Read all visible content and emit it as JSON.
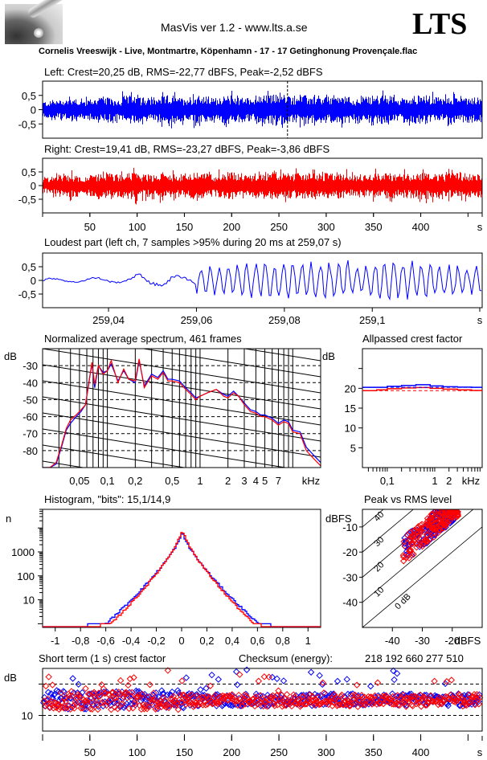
{
  "header": {
    "app_title": "MasVis ver 1.2 - www.lts.a.se",
    "brand": "LTS",
    "track": "Cornelis Vreeswijk - Live, Montmartre, Köpenhamn - 17 - 17 Getinghonung Provençale.flac",
    "logo_icon": "microphone-rod-icon"
  },
  "colors": {
    "left": "#0000ff",
    "right": "#ff0000",
    "axis": "#000000"
  },
  "chart_data": [
    {
      "id": "left-waveform",
      "type": "area",
      "title": "Left: Crest=20,25 dB, RMS=-22,77 dBFS, Peak=-2,52 dBFS",
      "ytick_labels": [
        "0,5",
        "0",
        "-0,5"
      ],
      "yticks": [
        0.5,
        0,
        -0.5
      ],
      "ylim": [
        -1,
        1
      ],
      "xlim": [
        0,
        465
      ],
      "marker_x": 259.07,
      "series": [
        {
          "name": "left",
          "color": "#0000ff",
          "envelope": [
            0.35,
            0.4,
            0.45,
            0.5,
            0.4,
            0.45,
            0.55,
            0.5,
            0.45,
            0.6,
            0.55,
            0.5,
            0.45,
            0.55,
            0.6,
            0.5,
            0.55,
            0.6,
            0.55,
            0.5,
            0.55,
            0.6,
            0.55,
            0.5,
            0.55,
            0.6,
            0.65,
            0.6,
            0.55,
            0.6,
            0.55,
            0.5,
            0.55,
            0.6,
            0.55,
            0.45,
            0.5,
            0.55,
            0.6,
            0.55,
            0.5,
            0.55,
            0.6,
            0.6,
            0.55,
            0.5,
            0.55,
            0.6,
            0.55,
            0.55
          ]
        }
      ]
    },
    {
      "id": "right-waveform",
      "type": "area",
      "title": "Right: Crest=19,41 dB, RMS=-23,27 dBFS, Peak=-3,86 dBFS",
      "ytick_labels": [
        "0,5",
        "0",
        "-0,5"
      ],
      "yticks": [
        0.5,
        0,
        -0.5
      ],
      "ylim": [
        -1,
        1
      ],
      "xlim": [
        0,
        465
      ],
      "xticks": [
        50,
        100,
        150,
        200,
        250,
        300,
        350,
        400
      ],
      "xtick_labels": [
        "50",
        "100",
        "150",
        "200",
        "250",
        "300",
        "350",
        "400",
        "s"
      ],
      "series": [
        {
          "name": "right",
          "color": "#ff0000",
          "envelope": [
            0.35,
            0.4,
            0.45,
            0.5,
            0.4,
            0.45,
            0.5,
            0.55,
            0.5,
            0.55,
            0.6,
            0.5,
            0.45,
            0.55,
            0.5,
            0.5,
            0.55,
            0.55,
            0.55,
            0.5,
            0.55,
            0.6,
            0.55,
            0.5,
            0.55,
            0.6,
            0.6,
            0.55,
            0.55,
            0.6,
            0.55,
            0.5,
            0.55,
            0.6,
            0.55,
            0.45,
            0.5,
            0.55,
            0.55,
            0.55,
            0.5,
            0.55,
            0.55,
            0.6,
            0.55,
            0.5,
            0.55,
            0.55,
            0.55,
            0.5
          ]
        }
      ]
    },
    {
      "id": "loudest-part",
      "type": "line",
      "title": "Loudest part (left  ch, 7 samples >95% during 20 ms at 259,07 s)",
      "ytick_labels": [
        "0,5",
        "0",
        "-0,5"
      ],
      "yticks": [
        0.5,
        0,
        -0.5
      ],
      "ylim": [
        -1,
        1
      ],
      "xlim": [
        259.025,
        259.125
      ],
      "xticks": [
        259.04,
        259.06,
        259.08,
        259.1
      ],
      "xtick_labels": [
        "259,04",
        "259,06",
        "259,08",
        "259,1",
        "s"
      ],
      "series": [
        {
          "name": "left",
          "color": "#0000ff",
          "amplitude_profile": [
            0.12,
            0.1,
            0.15,
            0.12,
            0.3,
            0.3,
            0.25,
            0.45,
            0.5,
            0.6,
            0.55,
            0.6,
            0.65,
            0.6,
            0.55,
            0.6,
            0.6,
            0.55,
            0.5,
            0.45
          ]
        }
      ]
    },
    {
      "id": "spectrum",
      "type": "line",
      "title": "Normalized average spectrum, 461 frames",
      "ylabel": "dB",
      "ytick_labels": [
        "-30",
        "-40",
        "-50",
        "-60",
        "-70",
        "-80"
      ],
      "yticks": [
        -30,
        -40,
        -50,
        -60,
        -70,
        -80
      ],
      "ylim": [
        -90,
        -20
      ],
      "xscale": "log",
      "xlabel": "kHz",
      "xlim": [
        0.02,
        20
      ],
      "xticks": [
        0.05,
        0.1,
        0.2,
        0.5,
        1,
        2,
        3,
        4,
        5,
        7
      ],
      "xtick_labels": [
        "0,05",
        "0,1",
        "0,2",
        "0,5",
        "1",
        "2",
        "3",
        "4",
        "5",
        "7",
        "kHz"
      ],
      "x": [
        0.02,
        0.024,
        0.028,
        0.032,
        0.036,
        0.04,
        0.046,
        0.052,
        0.058,
        0.063,
        0.068,
        0.073,
        0.08,
        0.09,
        0.1,
        0.11,
        0.13,
        0.15,
        0.17,
        0.2,
        0.22,
        0.25,
        0.3,
        0.35,
        0.4,
        0.45,
        0.5,
        0.6,
        0.7,
        0.8,
        0.9,
        1,
        1.2,
        1.5,
        1.8,
        2,
        2.3,
        2.6,
        3,
        3.5,
        4,
        4.5,
        5,
        6,
        7,
        8,
        9,
        10,
        12,
        14,
        17,
        20
      ],
      "series": [
        {
          "name": "left",
          "color": "#0000ff",
          "values": [
            -90,
            -90,
            -88,
            -78,
            -68,
            -64,
            -60,
            -57,
            -53,
            -40,
            -29,
            -43,
            -30,
            -34,
            -33,
            -29,
            -39,
            -33,
            -38,
            -40,
            -27,
            -42,
            -35,
            -37,
            -33,
            -38,
            -38,
            -39,
            -43,
            -46,
            -49,
            -48,
            -46,
            -44,
            -47,
            -48,
            -45,
            -48,
            -52,
            -56,
            -57,
            -59,
            -59,
            -61,
            -64,
            -62,
            -63,
            -68,
            -69,
            -78,
            -83,
            -87
          ]
        },
        {
          "name": "right",
          "color": "#ff0000",
          "values": [
            -90,
            -90,
            -87,
            -77,
            -67,
            -62,
            -59,
            -56,
            -53,
            -41,
            -28,
            -41,
            -30,
            -35,
            -33,
            -27,
            -40,
            -32,
            -38,
            -39,
            -26,
            -43,
            -36,
            -38,
            -34,
            -39,
            -39,
            -40,
            -44,
            -47,
            -50,
            -48,
            -46,
            -44,
            -48,
            -49,
            -46,
            -48,
            -53,
            -57,
            -58,
            -60,
            -60,
            -62,
            -65,
            -63,
            -64,
            -69,
            -70,
            -80,
            -85,
            -89
          ]
        }
      ]
    },
    {
      "id": "allpassed-crest",
      "type": "line",
      "title": "Allpassed crest factor",
      "ylabel": "dB",
      "ytick_labels": [
        "20",
        "15",
        "10",
        "5"
      ],
      "yticks": [
        20,
        15,
        10,
        5
      ],
      "ylim": [
        0,
        30
      ],
      "xscale": "log",
      "xlabel": "kHz",
      "xlim": [
        0.03,
        10
      ],
      "xtick_labels": [
        "0,1",
        "1",
        "2",
        "kHz"
      ],
      "xticks": [
        0.1,
        1,
        2
      ],
      "x": [
        0.03,
        0.06,
        0.1,
        0.2,
        0.4,
        0.8,
        1.5,
        3,
        6,
        10
      ],
      "series": [
        {
          "name": "left",
          "color": "#0000ff",
          "values": [
            20.25,
            20.25,
            20.5,
            20.7,
            20.9,
            20.6,
            20.4,
            20.3,
            20.25,
            20.25
          ]
        },
        {
          "name": "right",
          "color": "#ff0000",
          "values": [
            19.4,
            19.6,
            19.9,
            20.1,
            20.2,
            20.0,
            19.8,
            19.6,
            19.45,
            19.4
          ]
        },
        {
          "name": "left-full",
          "color": "#0000ff",
          "dashed": true,
          "value": 20.25
        },
        {
          "name": "right-full",
          "color": "#ff0000",
          "dashed": true,
          "value": 19.41
        }
      ]
    },
    {
      "id": "histogram",
      "type": "line",
      "title": "Histogram, \"bits\": 15,1/14,9",
      "ylabel": "n",
      "yscale": "log",
      "ytick_labels": [
        "1000",
        "100",
        "10"
      ],
      "yticks": [
        1000,
        100,
        10
      ],
      "ylim": [
        0.7,
        60000
      ],
      "xlim": [
        -1.1,
        1.1
      ],
      "xticks": [
        -1,
        -0.8,
        -0.6,
        -0.4,
        -0.2,
        0,
        0.2,
        0.4,
        0.6,
        0.8,
        1
      ],
      "xtick_labels": [
        "-1",
        "-0,8",
        "-0,6",
        "-0,4",
        "-0,2",
        "0",
        "0,2",
        "0,4",
        "0,6",
        "0,8",
        "1"
      ],
      "series": [
        {
          "name": "left",
          "color": "#0000ff",
          "peak": 7000,
          "decay_per_unit": 7.2,
          "extent": [
            -0.75,
            0.7
          ]
        },
        {
          "name": "right",
          "color": "#ff0000",
          "peak": 9000,
          "decay_per_unit": 7.8,
          "extent": [
            -0.65,
            0.62
          ]
        }
      ]
    },
    {
      "id": "peak-vs-rms",
      "type": "scatter",
      "title": "Peak vs RMS level",
      "ylabel": "dBFS",
      "xlabel": "dBFS",
      "ytick_labels": [
        "-10",
        "-20",
        "-30",
        "-40"
      ],
      "yticks": [
        -10,
        -20,
        -30,
        -40
      ],
      "xtick_labels": [
        "-40",
        "-30",
        "-20",
        "dBFS"
      ],
      "xticks": [
        -40,
        -30,
        -20
      ],
      "xlim": [
        -50,
        -10
      ],
      "ylim": [
        -50,
        -3
      ],
      "diagonal_labels": [
        "40",
        "30",
        "20",
        "10",
        "0 dB"
      ],
      "series": [
        {
          "name": "left",
          "color": "#0000ff",
          "cluster": {
            "x_range": [
              -37,
              -18
            ],
            "crest_range": [
              12,
              22
            ],
            "n": 180
          }
        },
        {
          "name": "right",
          "color": "#ff0000",
          "cluster": {
            "x_range": [
              -37,
              -18
            ],
            "crest_range": [
              12,
              22
            ],
            "n": 180
          }
        }
      ]
    },
    {
      "id": "short-term-crest",
      "type": "scatter",
      "title": "Short term (1 s) crest factor",
      "ylabel": "dB",
      "ytick_labels": [
        "10"
      ],
      "yticks": [
        10
      ],
      "ylim": [
        5,
        25
      ],
      "xlim": [
        0,
        465
      ],
      "xticks": [
        50,
        100,
        150,
        200,
        250,
        300,
        350,
        400
      ],
      "xtick_labels": [
        "50",
        "100",
        "150",
        "200",
        "250",
        "300",
        "350",
        "400",
        "s"
      ],
      "dashed_levels": [
        10,
        20
      ],
      "typical_range": [
        11,
        19
      ],
      "series": [
        {
          "name": "left",
          "color": "#0000ff"
        },
        {
          "name": "right",
          "color": "#ff0000"
        }
      ]
    }
  ],
  "checksum": {
    "label": "Checksum (energy):",
    "value": "218 192 660 277 510"
  }
}
